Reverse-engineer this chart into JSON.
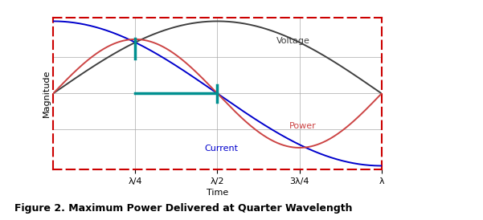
{
  "title": "Figure 2. Maximum Power Delivered at Quarter Wavelength",
  "xlabel": "Time",
  "ylabel": "Magnitude",
  "xlim": [
    0,
    1.0
  ],
  "ylim": [
    -1.05,
    1.05
  ],
  "xtick_positions": [
    0.25,
    0.5,
    0.75,
    1.0
  ],
  "xtick_labels": [
    "λ/4",
    "λ/2",
    "3λ/4",
    "λ"
  ],
  "voltage_color": "#404040",
  "current_color": "#0000cc",
  "power_color": "#cc4444",
  "annotation_color": "#009090",
  "border_color": "#cc0000",
  "grid_color": "#aaaaaa",
  "background_color": "#ffffff",
  "voltage_label": "Voltage",
  "current_label": "Current",
  "power_label": "Power",
  "title_fontsize": 9,
  "axis_label_fontsize": 8,
  "tick_label_fontsize": 8,
  "label_fontsize": 8,
  "phase_voltage": 1.5707963,
  "phase_current": 0.0,
  "power_amplitude": 0.75
}
